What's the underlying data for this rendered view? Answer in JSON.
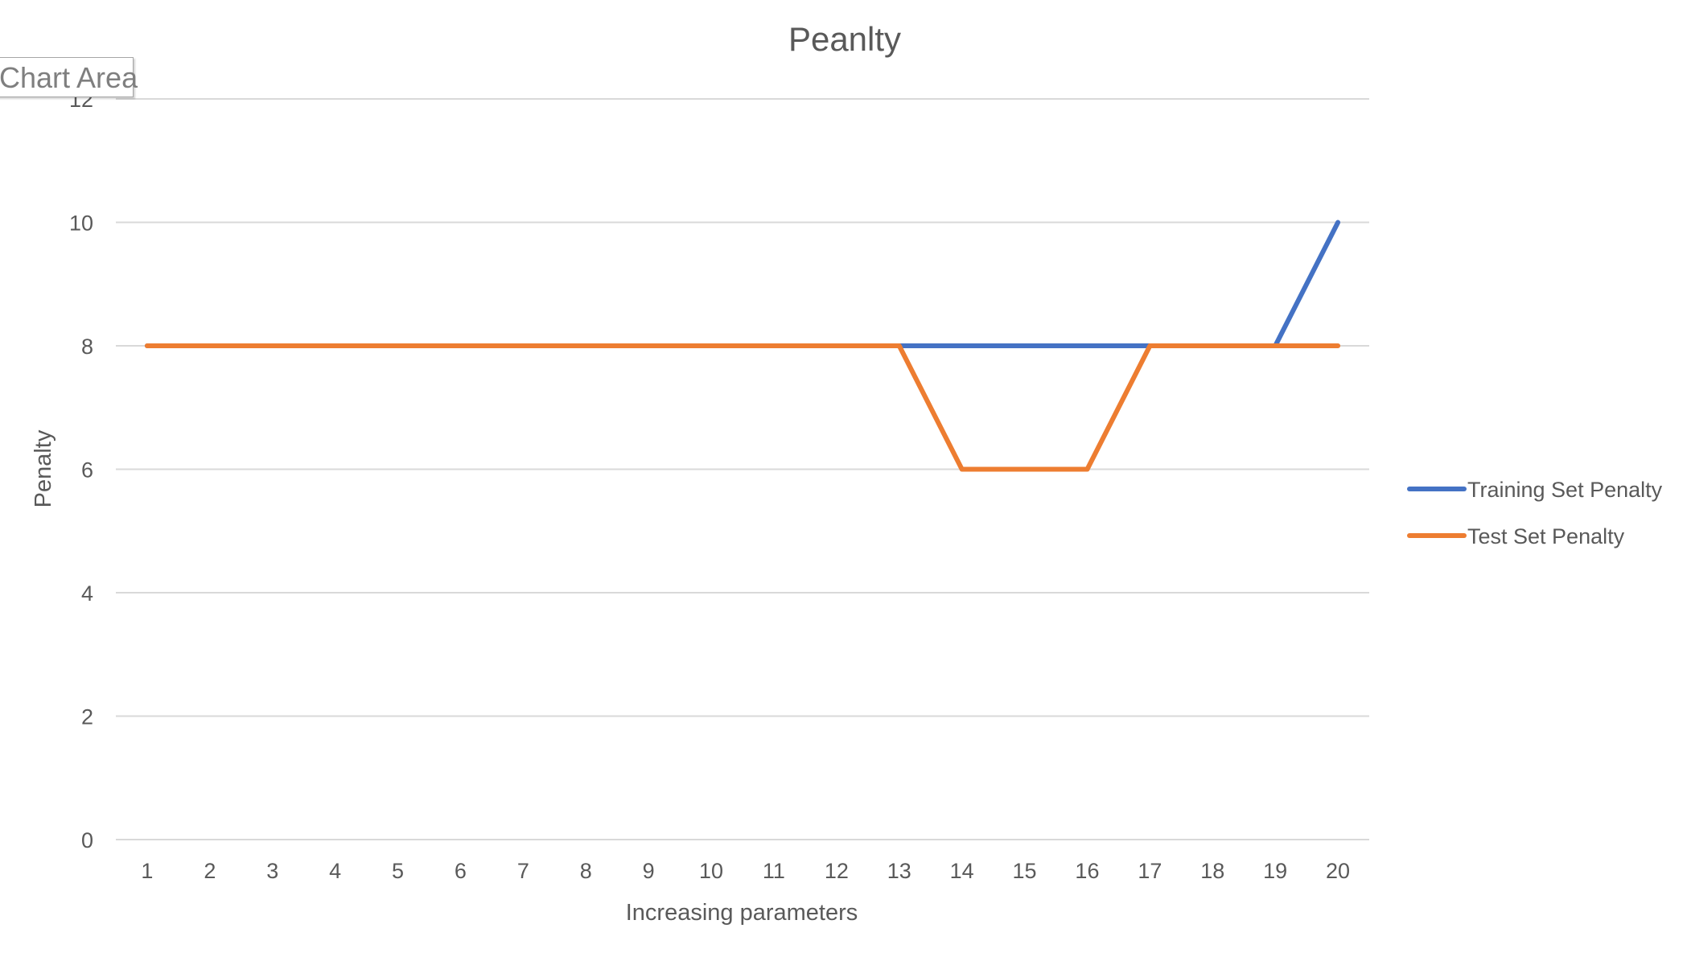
{
  "chart_data": {
    "type": "line",
    "title": "Peanlty",
    "xlabel": "Increasing parameters",
    "ylabel": "Penalty",
    "categories": [
      "1",
      "2",
      "3",
      "4",
      "5",
      "6",
      "7",
      "8",
      "9",
      "10",
      "11",
      "12",
      "13",
      "14",
      "15",
      "16",
      "17",
      "18",
      "19",
      "20"
    ],
    "ylim": [
      0,
      12
    ],
    "yticks": [
      0,
      2,
      4,
      6,
      8,
      10,
      12
    ],
    "grid": true,
    "legend_position": "right",
    "series": [
      {
        "name": "Training Set Penalty",
        "color": "#4472C4",
        "values": [
          8,
          8,
          8,
          8,
          8,
          8,
          8,
          8,
          8,
          8,
          8,
          8,
          8,
          8,
          8,
          8,
          8,
          8,
          8,
          10
        ]
      },
      {
        "name": "Test Set Penalty",
        "color": "#ED7D31",
        "values": [
          8,
          8,
          8,
          8,
          8,
          8,
          8,
          8,
          8,
          8,
          8,
          8,
          8,
          6,
          6,
          6,
          8,
          8,
          8,
          8
        ]
      }
    ]
  },
  "tooltip": {
    "label": "Chart Area"
  },
  "colors": {
    "text": "#595959",
    "gridline": "#D9D9D9"
  }
}
